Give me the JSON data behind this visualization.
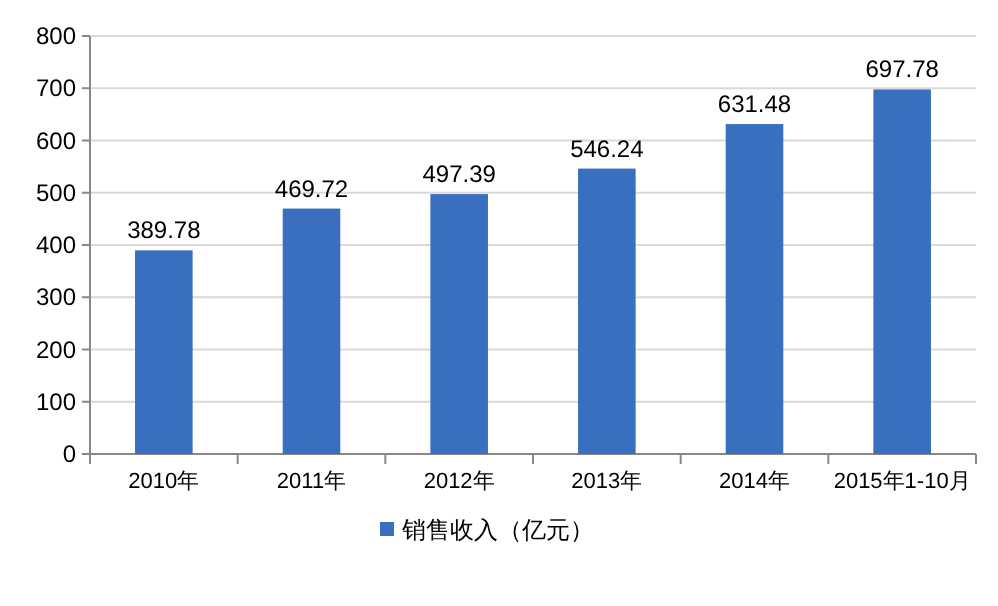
{
  "chart_data": {
    "type": "bar",
    "categories": [
      "2010年",
      "2011年",
      "2012年",
      "2013年",
      "2014年",
      "2015年1-10月"
    ],
    "series": [
      {
        "name": "销售收入（亿元）",
        "color": "#3a6fbf",
        "values": [
          389.78,
          469.72,
          497.39,
          546.24,
          631.48,
          697.78
        ]
      }
    ],
    "ylim": [
      0,
      800
    ],
    "yticks": [
      0,
      100,
      200,
      300,
      400,
      500,
      600,
      700,
      800
    ],
    "grid": "y",
    "legend": "bottom",
    "data_labels": true
  }
}
